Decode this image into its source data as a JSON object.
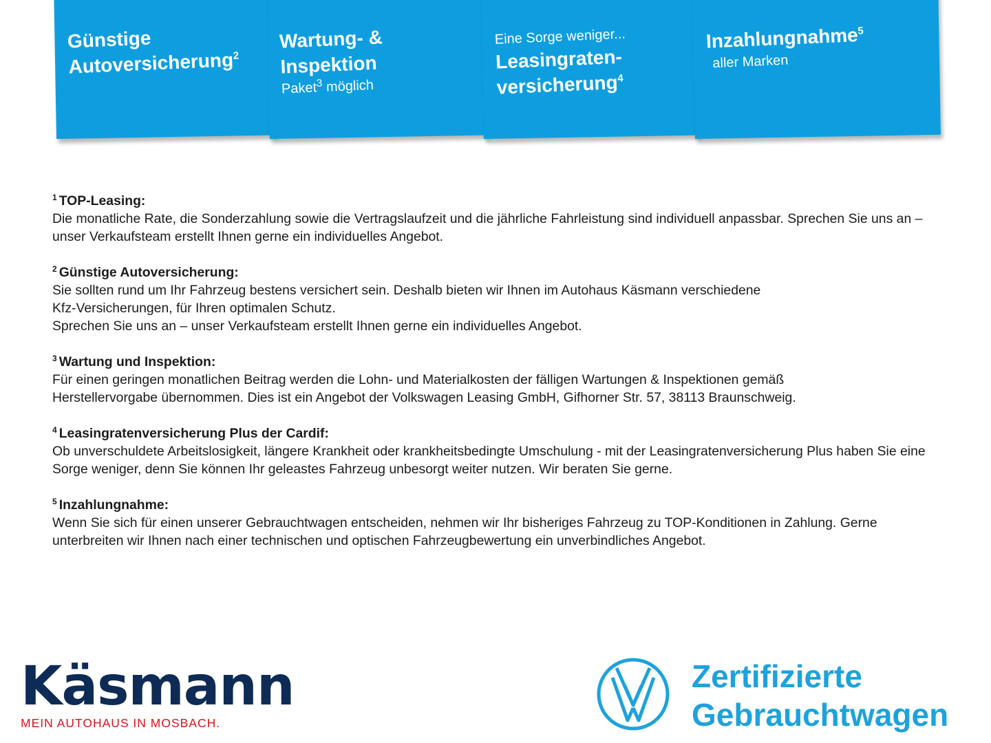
{
  "cards": [
    {
      "title_lines": [
        "Günstige",
        "Autoversicherung"
      ],
      "sup": "2",
      "sub": ""
    },
    {
      "title_lines": [
        "Wartung- &",
        "Inspektion"
      ],
      "sub_prefix": "Paket",
      "sub_sup": "3",
      "sub_suffix": " möglich"
    },
    {
      "pre": "Eine Sorge weniger...",
      "title_lines": [
        "Leasingraten-",
        "versicherung"
      ],
      "sup": "4"
    },
    {
      "title_lines": [
        "Inzahlungnahme"
      ],
      "sup": "5",
      "sub": "aller Marken"
    }
  ],
  "notes": [
    {
      "num": "1",
      "title": "TOP-Leasing:",
      "lines": [
        "Die monatliche Rate, die Sonderzahlung sowie die Vertragslaufzeit und die jährliche Fahrleistung sind individuell anpassbar. Sprechen Sie uns an – unser Verkaufsteam erstellt Ihnen gerne ein individuelles Angebot."
      ]
    },
    {
      "num": "2",
      "title": "Günstige Autoversicherung:",
      "lines": [
        "Sie sollten rund um Ihr Fahrzeug bestens versichert sein. Deshalb bieten wir Ihnen im Autohaus Käsmann verschiedene",
        "Kfz-Versicherungen, für Ihren optimalen Schutz.",
        "Sprechen Sie uns an – unser Verkaufsteam erstellt Ihnen gerne ein individuelles Angebot."
      ]
    },
    {
      "num": "3",
      "title": "Wartung und Inspektion:",
      "lines": [
        "Für einen geringen monatlichen Beitrag werden die Lohn- und Materialkosten der fälligen Wartungen & Inspektionen gemäß",
        "Herstellervorgabe übernommen. Dies ist ein Angebot der Volkswagen Leasing GmbH, Gifhorner Str. 57, 38113 Braunschweig."
      ]
    },
    {
      "num": "4",
      "title": "Leasingratenversicherung Plus der Cardif:",
      "lines": [
        "Ob unverschuldete Arbeitslosigkeit, längere Krankheit oder krankheitsbedingte Umschulung - mit der Leasingratenversicherung Plus haben Sie eine Sorge weniger, denn Sie können Ihr geleastes Fahrzeug unbesorgt weiter nutzen. Wir beraten Sie gerne."
      ]
    },
    {
      "num": "5",
      "title": "Inzahlungnahme:",
      "lines": [
        "Wenn Sie sich für einen unserer Gebrauchtwagen entscheiden, nehmen wir Ihr bisheriges Fahrzeug zu TOP-Konditionen in Zahlung. Gerne unterbreiten wir Ihnen nach einer technischen und optischen Fahrzeugbewertung ein unverbindliches Angebot."
      ]
    }
  ],
  "dealer": {
    "name": "Käsmann",
    "tagline": "MEIN AUTOHAUS IN MOSBACH."
  },
  "vw": {
    "line1": "Zertifizierte",
    "line2": "Gebrauchtwagen"
  },
  "colors": {
    "card_blue": "#0e9ee0",
    "dealer_navy": "#0d2b55",
    "dealer_red": "#d9131c",
    "vw_blue": "#1ea2dc"
  }
}
